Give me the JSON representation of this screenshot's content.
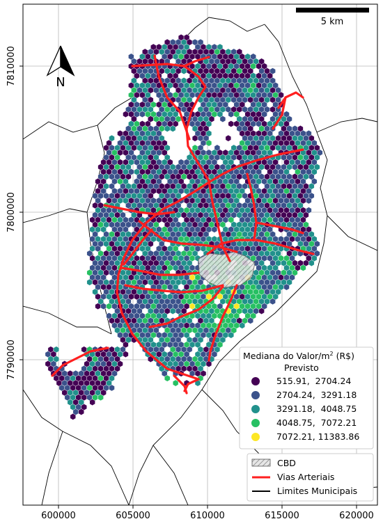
{
  "map": {
    "x_ticks": [
      "600000",
      "605000",
      "610000",
      "615000",
      "620000"
    ],
    "y_ticks": [
      "7790000",
      "7800000",
      "7810000"
    ],
    "scale_bar_label": "5 km",
    "north_label": "N"
  },
  "legend_value": {
    "title_line1": "Mediana do Valor/m",
    "title_sup": "2",
    "title_unit": " (R$)",
    "title_line2": "Previsto",
    "classes": [
      {
        "range": "515.91,  2704.24",
        "color": "#440154"
      },
      {
        "range": "2704.24,  3291.18",
        "color": "#3b528b"
      },
      {
        "range": "3291.18,  4048.75",
        "color": "#21918c"
      },
      {
        "range": "4048.75,  7072.21",
        "color": "#27c063"
      },
      {
        "range": "7072.21, 11383.86",
        "color": "#fde725"
      }
    ]
  },
  "legend_layers": {
    "cbd": "CBD",
    "roads": "Vias Arteriais",
    "limits": "Limites Municipais"
  },
  "colors": {
    "roads": "#ff1f1f",
    "limits": "#000000",
    "cbd": "#9a9a9a"
  }
}
